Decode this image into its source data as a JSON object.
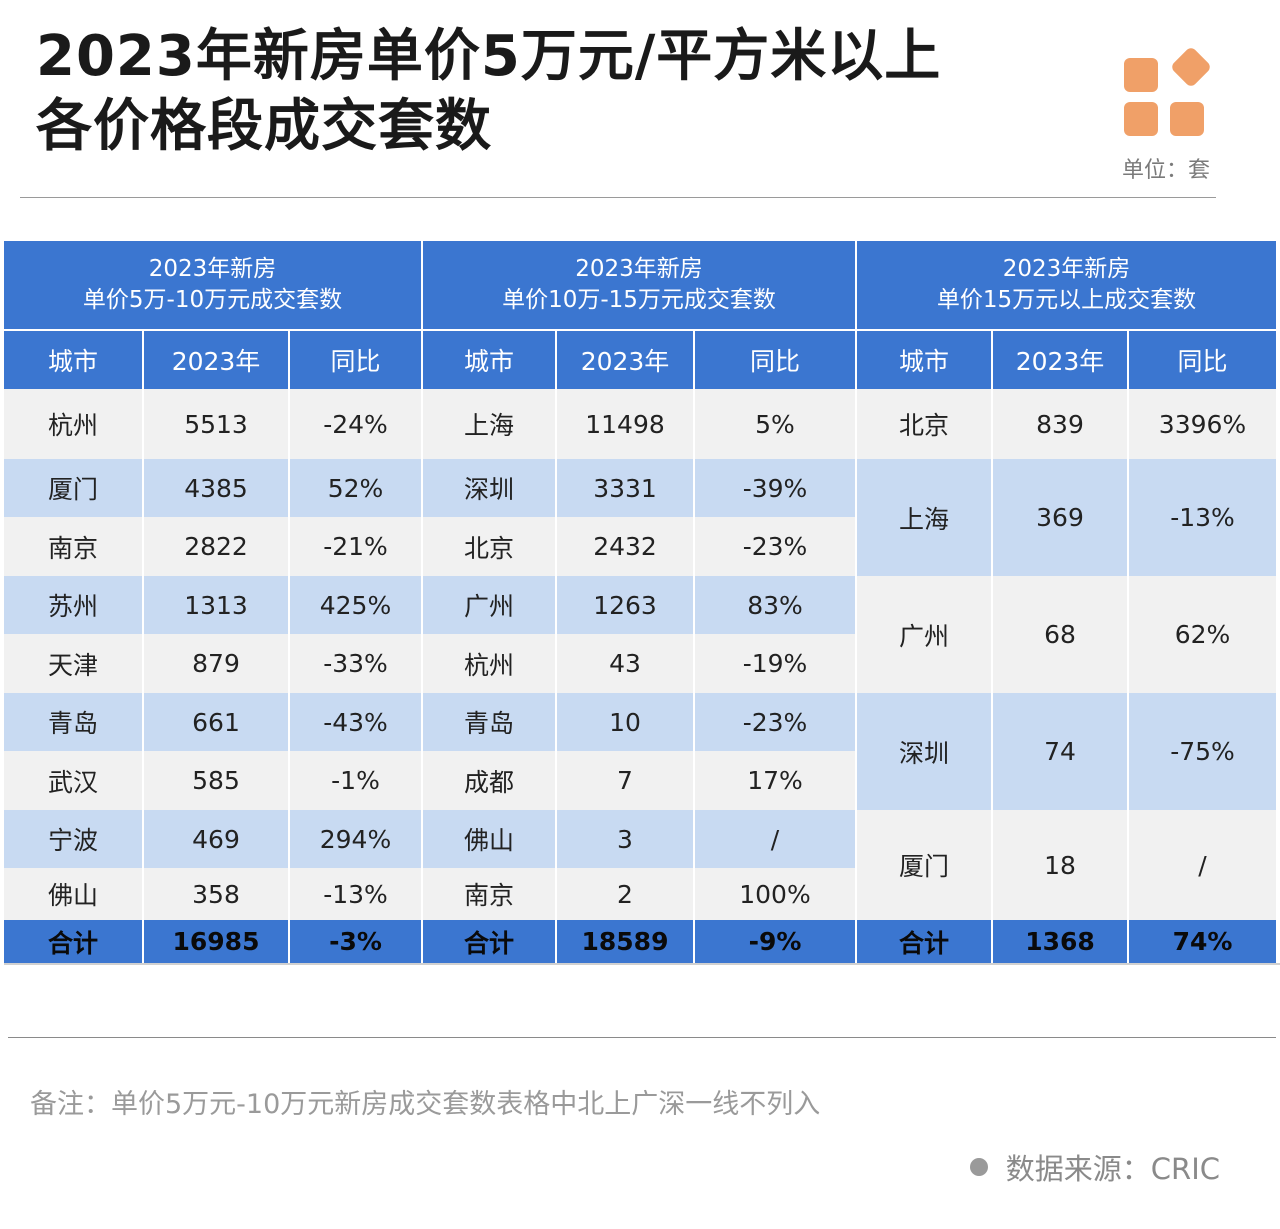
{
  "title_line1": "2023年新房单价5万元/平方米以上",
  "title_line2": "各价格段成交套数",
  "unit": "单位：套",
  "note": "备注：单价5万元-10万元新房成交套数表格中北上广深一线不列入",
  "source": "数据来源：CRIC",
  "colors": {
    "header_blue": "#3b76d0",
    "row_blue": "#c8daf2",
    "row_gray": "#f1f1f1",
    "logo_orange": "#f0a068"
  },
  "chart_data": {
    "type": "table",
    "title": "2023年新房单价5万元/平方米以上各价格段成交套数",
    "unit": "单位：套",
    "groups": [
      {
        "header_line1": "2023年新房",
        "header_line2": "单价5万-10万元成交套数",
        "columns": [
          "城市",
          "2023年",
          "同比"
        ],
        "rows": [
          {
            "city": "杭州",
            "value": "5513",
            "yoy": "-24%"
          },
          {
            "city": "厦门",
            "value": "4385",
            "yoy": "52%"
          },
          {
            "city": "南京",
            "value": "2822",
            "yoy": "-21%"
          },
          {
            "city": "苏州",
            "value": "1313",
            "yoy": "425%"
          },
          {
            "city": "天津",
            "value": "879",
            "yoy": "-33%"
          },
          {
            "city": "青岛",
            "value": "661",
            "yoy": "-43%"
          },
          {
            "city": "武汉",
            "value": "585",
            "yoy": "-1%"
          },
          {
            "city": "宁波",
            "value": "469",
            "yoy": "294%"
          },
          {
            "city": "佛山",
            "value": "358",
            "yoy": "-13%"
          }
        ],
        "total": {
          "label": "合计",
          "value": "16985",
          "yoy": "-3%"
        }
      },
      {
        "header_line1": "2023年新房",
        "header_line2": "单价10万-15万元成交套数",
        "columns": [
          "城市",
          "2023年",
          "同比"
        ],
        "rows": [
          {
            "city": "上海",
            "value": "11498",
            "yoy": "5%"
          },
          {
            "city": "深圳",
            "value": "3331",
            "yoy": "-39%"
          },
          {
            "city": "北京",
            "value": "2432",
            "yoy": "-23%"
          },
          {
            "city": "广州",
            "value": "1263",
            "yoy": "83%"
          },
          {
            "city": "杭州",
            "value": "43",
            "yoy": "-19%"
          },
          {
            "city": "青岛",
            "value": "10",
            "yoy": "-23%"
          },
          {
            "city": "成都",
            "value": "7",
            "yoy": "17%"
          },
          {
            "city": "佛山",
            "value": "3",
            "yoy": "/"
          },
          {
            "city": "南京",
            "value": "2",
            "yoy": "100%"
          }
        ],
        "total": {
          "label": "合计",
          "value": "18589",
          "yoy": "-9%"
        }
      },
      {
        "header_line1": "2023年新房",
        "header_line2": "单价15万元以上成交套数",
        "columns": [
          "城市",
          "2023年",
          "同比"
        ],
        "rows": [
          {
            "city": "北京",
            "value": "839",
            "yoy": "3396%"
          },
          {
            "city": "上海",
            "value": "369",
            "yoy": "-13%"
          },
          {
            "city": "广州",
            "value": "68",
            "yoy": "62%"
          },
          {
            "city": "深圳",
            "value": "74",
            "yoy": "-75%"
          },
          {
            "city": "厦门",
            "value": "18",
            "yoy": "/"
          }
        ],
        "total": {
          "label": "合计",
          "value": "1368",
          "yoy": "74%"
        }
      }
    ]
  }
}
